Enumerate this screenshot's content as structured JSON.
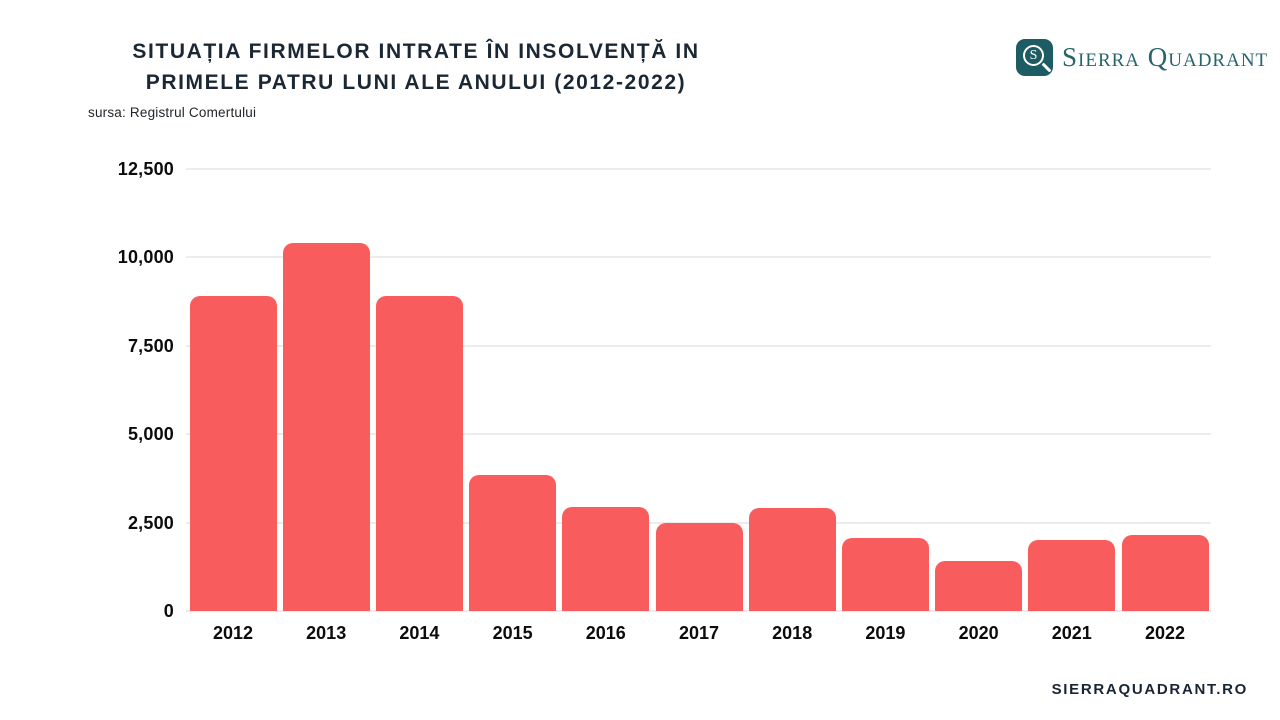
{
  "header": {
    "title_line1": "SITUAȚIA FIRMELOR INTRATE ÎN INSOLVENȚĂ IN",
    "title_line2": "PRIMELE PATRU LUNI ALE ANULUI (2012-2022)",
    "subtitle": "sursa: Registrul Comertului"
  },
  "branding": {
    "logo_monogram": "S",
    "logo_name": "Sierra Quadrant",
    "logo_teal": "#1d5c63",
    "website": "SIERRAQUADRANT.RO"
  },
  "chart_data": {
    "type": "bar",
    "title": "SITUAȚIA FIRMELOR INTRATE ÎN INSOLVENȚĂ IN PRIMELE PATRU LUNI ALE ANULUI (2012-2022)",
    "source_note": "sursa: Registrul Comertului",
    "categories": [
      "2012",
      "2013",
      "2014",
      "2015",
      "2016",
      "2017",
      "2018",
      "2019",
      "2020",
      "2021",
      "2022"
    ],
    "values": [
      8900,
      10400,
      8900,
      3850,
      2950,
      2500,
      2900,
      2050,
      1400,
      2000,
      2150
    ],
    "xlabel": "",
    "ylabel": "",
    "ylim": [
      0,
      12500
    ],
    "yticks": [
      0,
      2500,
      5000,
      7500,
      10000,
      12500
    ],
    "ytick_labels": [
      "0",
      "2,500",
      "5,000",
      "7,500",
      "10,000",
      "12,500"
    ],
    "bar_color": "#f95c5c",
    "gridline_color": "#ececec",
    "grid": true,
    "legend": "none",
    "background": "#ffffff"
  }
}
